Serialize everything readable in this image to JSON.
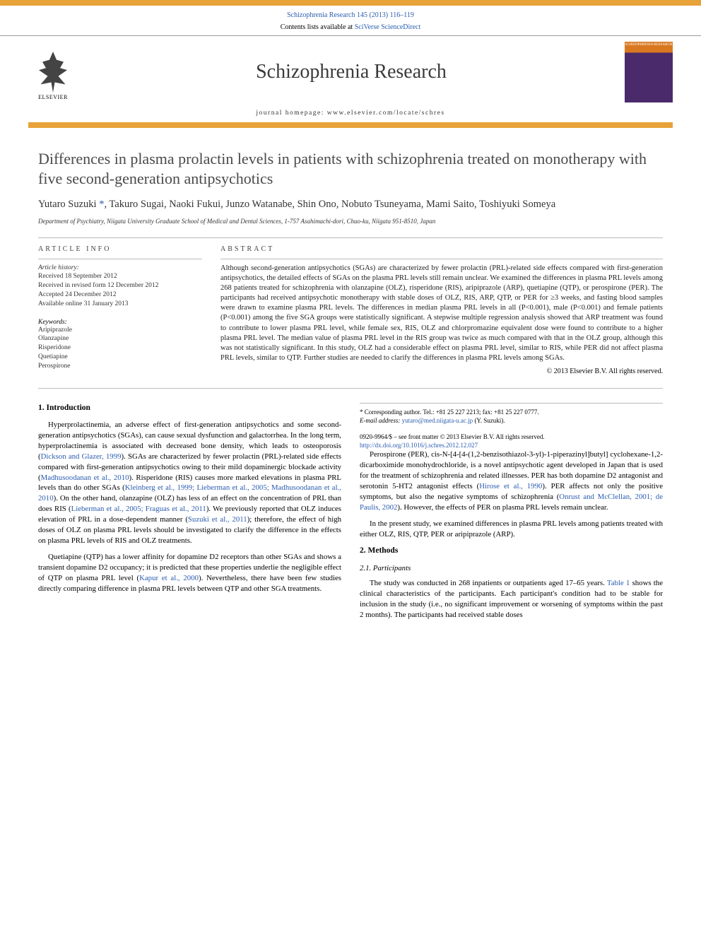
{
  "header": {
    "journal_ref": "Schizophrenia Research 145 (2013) 116–119",
    "contents_prefix": "Contents lists available at ",
    "contents_link": "SciVerse ScienceDirect",
    "journal_name": "Schizophrenia Research",
    "homepage_prefix": "journal homepage: ",
    "homepage": "www.elsevier.com/locate/schres",
    "elsevier_label": "ELSEVIER",
    "cover_text": "SCHIZOPHRENIA RESEARCH"
  },
  "title": "Differences in plasma prolactin levels in patients with schizophrenia treated on monotherapy with five second-generation antipsychotics",
  "authors_line": "Yutaro Suzuki ",
  "authors_corr": "*",
  "authors_rest": ", Takuro Sugai, Naoki Fukui, Junzo Watanabe, Shin Ono, Nobuto Tsuneyama, Mami Saito, Toshiyuki Someya",
  "affiliation": "Department of Psychiatry, Niigata University Graduate School of Medical and Dental Sciences, 1-757 Asahimachi-dori, Chuo-ku, Niigata 951-8510, Japan",
  "article_info": {
    "heading": "ARTICLE INFO",
    "history_label": "Article history:",
    "received": "Received 18 September 2012",
    "revised": "Received in revised form 12 December 2012",
    "accepted": "Accepted 24 December 2012",
    "online": "Available online 31 January 2013",
    "keywords_label": "Keywords:",
    "keywords": [
      "Aripiprazole",
      "Olanzapine",
      "Risperidone",
      "Quetiapine",
      "Perospirone"
    ]
  },
  "abstract": {
    "heading": "ABSTRACT",
    "text": "Although second-generation antipsychotics (SGAs) are characterized by fewer prolactin (PRL)-related side effects compared with first-generation antipsychotics, the detailed effects of SGAs on the plasma PRL levels still remain unclear. We examined the differences in plasma PRL levels among 268 patients treated for schizophrenia with olanzapine (OLZ), risperidone (RIS), aripiprazole (ARP), quetiapine (QTP), or perospirone (PER). The participants had received antipsychotic monotherapy with stable doses of OLZ, RIS, ARP, QTP, or PER for ≥3 weeks, and fasting blood samples were drawn to examine plasma PRL levels. The differences in median plasma PRL levels in all (P<0.001), male (P<0.001) and female patients (P<0.001) among the five SGA groups were statistically significant. A stepwise multiple regression analysis showed that ARP treatment was found to contribute to lower plasma PRL level, while female sex, RIS, OLZ and chlorpromazine equivalent dose were found to contribute to a higher plasma PRL level. The median value of plasma PRL level in the RIS group was twice as much compared with that in the OLZ group, although this was not statistically significant. In this study, OLZ had a considerable effect on plasma PRL level, similar to RIS, while PER did not affect plasma PRL levels, similar to QTP. Further studies are needed to clarify the differences in plasma PRL levels among SGAs.",
    "copyright": "© 2013 Elsevier B.V. All rights reserved."
  },
  "sections": {
    "intro_heading": "1. Introduction",
    "intro_p1a": "Hyperprolactinemia, an adverse effect of first-generation antipsychotics and some second-generation antipsychotics (SGAs), can cause sexual dysfunction and galactorrhea. In the long term, hyperprolactinemia is associated with decreased bone density, which leads to osteoporosis (",
    "intro_p1_cite1": "Dickson and Glazer, 1999",
    "intro_p1b": "). SGAs are characterized by fewer prolactin (PRL)-related side effects compared with first-generation antipsychotics owing to their mild dopaminergic blockade activity (",
    "intro_p1_cite2": "Madhusoodanan et al., 2010",
    "intro_p1c": "). Risperidone (RIS) causes more marked elevations in plasma PRL levels than do other SGAs (",
    "intro_p1_cite3": "Kleinberg et al., 1999; Lieberman et al., 2005; Madhusoodanan et al., 2010",
    "intro_p1d": "). On the other hand, olanzapine (OLZ) has less of an effect on the concentration of PRL than does RIS (",
    "intro_p1_cite4": "Lieberman et al., 2005; Fraguas et al., 2011",
    "intro_p1e": "). We previously reported that OLZ induces elevation of PRL in a dose-dependent manner (",
    "intro_p1_cite5": "Suzuki et al., 2011",
    "intro_p1f": "); therefore, the effect of high doses of OLZ on plasma PRL levels should be investigated to clarify the difference in the effects on plasma PRL levels of RIS and OLZ treatments.",
    "intro_p2a": "Quetiapine (QTP) has a lower affinity for dopamine D2 receptors than other SGAs and shows a transient dopamine D2 occupancy; it is predicted that these properties underlie the negligible effect of QTP on plasma PRL level (",
    "intro_p2_cite1": "Kapur et al., 2000",
    "intro_p2b": "). Nevertheless, there have been few studies directly comparing difference in plasma PRL levels between QTP and other SGA treatments.",
    "intro_p3a": "Perospirone (PER), cis-N-[4-[4-(1,2-benzisothiazol-3-yl)-1-piperazinyl]butyl] cyclohexane-1,2-dicarboximide monohydrochloride, is a novel antipsychotic agent developed in Japan that is used for the treatment of schizophrenia and related illnesses. PER has both dopamine D2 antagonist and serotonin 5-HT2 antagonist effects (",
    "intro_p3_cite1": "Hirose et al., 1990",
    "intro_p3b": "). PER affects not only the positive symptoms, but also the negative symptoms of schizophrenia (",
    "intro_p3_cite2": "Onrust and McClellan, 2001; de Paulis, 2002",
    "intro_p3c": "). However, the effects of PER on plasma PRL levels remain unclear.",
    "intro_p4": "In the present study, we examined differences in plasma PRL levels among patients treated with either OLZ, RIS, QTP, PER or aripiprazole (ARP).",
    "methods_heading": "2. Methods",
    "participants_heading": "2.1. Participants",
    "methods_p1a": "The study was conducted in 268 inpatients or outpatients aged 17–65 years. ",
    "methods_p1_cite1": "Table 1",
    "methods_p1b": " shows the clinical characteristics of the participants. Each participant's condition had to be stable for inclusion in the study (i.e., no significant improvement or worsening of symptoms within the past 2 months). The participants had received stable doses"
  },
  "footer": {
    "corr_label": "* Corresponding author. Tel.: +81 25 227 2213; fax: +81 25 227 0777.",
    "email_label": "E-mail address: ",
    "email": "yutaro@med.niigata-u.ac.jp",
    "email_suffix": " (Y. Suzuki).",
    "issn": "0920-9964/$ – see front matter © 2013 Elsevier B.V. All rights reserved.",
    "doi": "http://dx.doi.org/10.1016/j.schres.2012.12.027"
  },
  "colors": {
    "accent_bar": "#e8a23a",
    "link": "#2a5cb0",
    "title_grey": "#4a4a4a"
  }
}
